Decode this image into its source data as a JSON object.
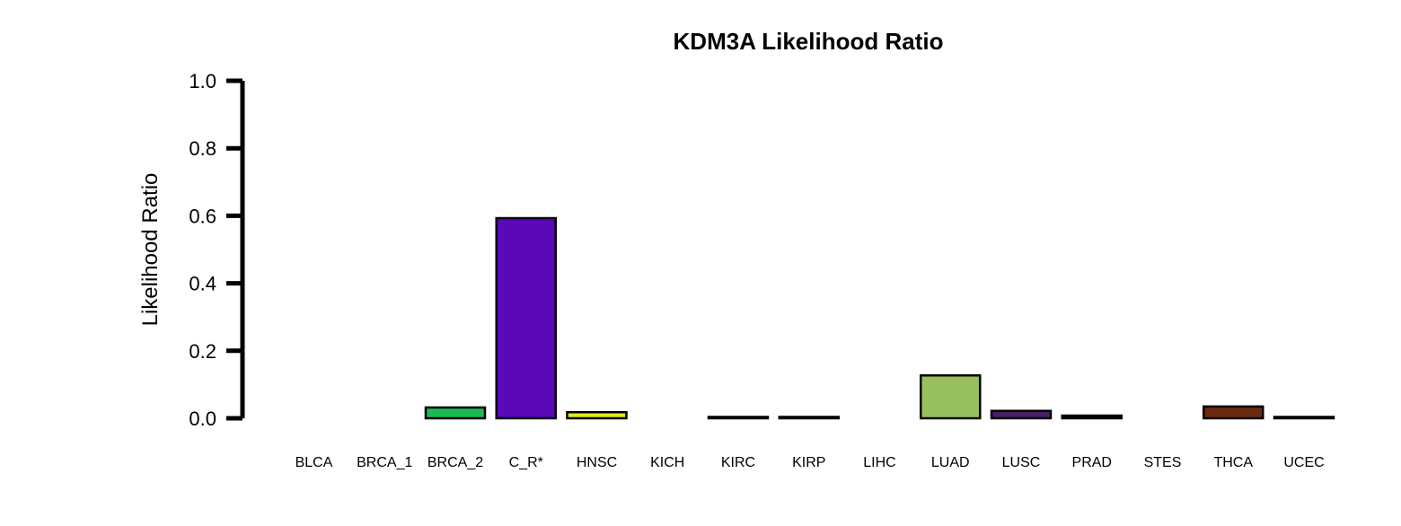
{
  "chart_data": {
    "type": "bar",
    "title": "KDM3A Likelihood Ratio",
    "xlabel": "",
    "ylabel": "Likelihood Ratio",
    "ylim": [
      0,
      1.0
    ],
    "yticks": [
      "0.0",
      "0.2",
      "0.4",
      "0.6",
      "0.8",
      "1.0"
    ],
    "grid": false,
    "legend": "none",
    "categories": [
      "BLCA",
      "BRCA_1",
      "BRCA_2",
      "C_R*",
      "HNSC",
      "KICH",
      "KIRC",
      "KIRP",
      "LIHC",
      "LUAD",
      "LUSC",
      "PRAD",
      "STES",
      "THCA",
      "UCEC"
    ],
    "values": [
      0.0,
      0.0,
      0.032,
      0.593,
      0.018,
      0.0,
      0.004,
      0.004,
      0.0,
      0.127,
      0.022,
      0.008,
      0.0,
      0.035,
      0.004
    ],
    "colors": [
      "#000000",
      "#000000",
      "#1db954",
      "#5b08b8",
      "#e6e619",
      "#000000",
      "#000000",
      "#000000",
      "#000000",
      "#97bf5e",
      "#4a1f68",
      "#000000",
      "#000000",
      "#6b2a10",
      "#000000"
    ]
  }
}
